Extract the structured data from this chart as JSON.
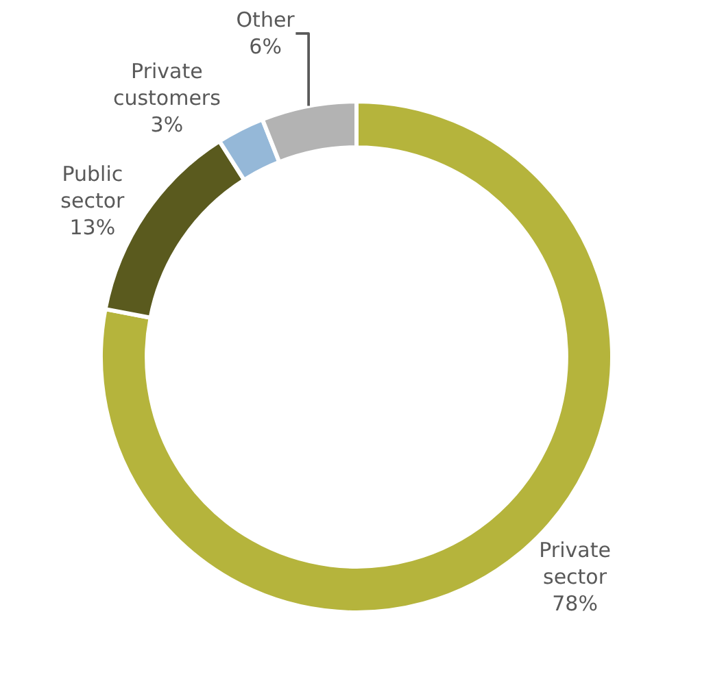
{
  "chart_data": {
    "type": "donut",
    "categories": [
      "Private sector",
      "Public sector",
      "Private customers",
      "Other"
    ],
    "values": [
      78,
      13,
      3,
      6
    ],
    "value_labels": [
      "78%",
      "13%",
      "3%",
      "6%"
    ],
    "colors": [
      "#b5b43c",
      "#5a5a1e",
      "#95b8d8",
      "#b3b3b3"
    ],
    "legend": false
  }
}
